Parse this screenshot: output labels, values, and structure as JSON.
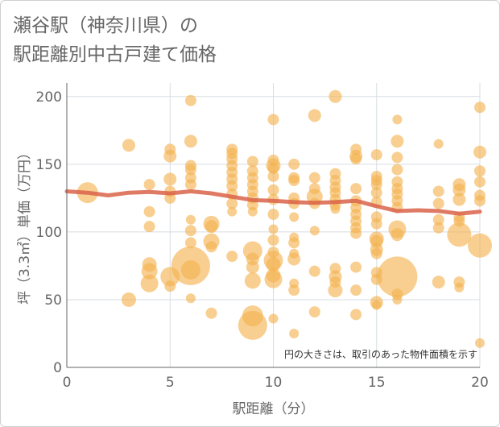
{
  "title": {
    "line1": "瀬谷駅（神奈川県）の",
    "line2": "駅距離別中古戸建て価格"
  },
  "chart_data": {
    "type": "scatter",
    "xlabel": "駅距離（分）",
    "ylabel": "坪（3.3㎡）単価（万円）",
    "xlim": [
      0,
      20
    ],
    "ylim": [
      0,
      210
    ],
    "xticks": [
      0,
      5,
      10,
      15,
      20
    ],
    "yticks": [
      0,
      50,
      100,
      150,
      200
    ],
    "grid": true,
    "annotation": "円の大きさは、取引のあった物件面積を示す",
    "colors": {
      "bubble": "#f3b24e",
      "trend": "#d9634a",
      "grid": "#d7dde2",
      "axis": "#666666"
    },
    "points": [
      {
        "x": 1,
        "y": 129,
        "s": 13
      },
      {
        "x": 3,
        "y": 164,
        "s": 8
      },
      {
        "x": 3,
        "y": 50,
        "s": 9
      },
      {
        "x": 4,
        "y": 135,
        "s": 7
      },
      {
        "x": 4,
        "y": 115,
        "s": 7
      },
      {
        "x": 4,
        "y": 104,
        "s": 7
      },
      {
        "x": 4,
        "y": 76,
        "s": 9
      },
      {
        "x": 4,
        "y": 71,
        "s": 10
      },
      {
        "x": 4,
        "y": 62,
        "s": 11
      },
      {
        "x": 5,
        "y": 161,
        "s": 7
      },
      {
        "x": 5,
        "y": 156,
        "s": 8
      },
      {
        "x": 5,
        "y": 139,
        "s": 8
      },
      {
        "x": 5,
        "y": 130,
        "s": 7
      },
      {
        "x": 5,
        "y": 125,
        "s": 7
      },
      {
        "x": 5,
        "y": 67,
        "s": 12
      },
      {
        "x": 5,
        "y": 60,
        "s": 7
      },
      {
        "x": 6,
        "y": 197,
        "s": 7
      },
      {
        "x": 6,
        "y": 167,
        "s": 8
      },
      {
        "x": 6,
        "y": 149,
        "s": 7
      },
      {
        "x": 6,
        "y": 146,
        "s": 7
      },
      {
        "x": 6,
        "y": 140,
        "s": 7
      },
      {
        "x": 6,
        "y": 135,
        "s": 7
      },
      {
        "x": 6,
        "y": 109,
        "s": 6
      },
      {
        "x": 6,
        "y": 101,
        "s": 7
      },
      {
        "x": 6,
        "y": 92,
        "s": 7
      },
      {
        "x": 6,
        "y": 75,
        "s": 24
      },
      {
        "x": 6,
        "y": 72,
        "s": 12
      },
      {
        "x": 6,
        "y": 51,
        "s": 6
      },
      {
        "x": 7,
        "y": 106,
        "s": 10
      },
      {
        "x": 7,
        "y": 104,
        "s": 8
      },
      {
        "x": 7,
        "y": 93,
        "s": 10
      },
      {
        "x": 7,
        "y": 89,
        "s": 7
      },
      {
        "x": 7,
        "y": 40,
        "s": 7
      },
      {
        "x": 8,
        "y": 161,
        "s": 7
      },
      {
        "x": 8,
        "y": 158,
        "s": 7
      },
      {
        "x": 8,
        "y": 154,
        "s": 7
      },
      {
        "x": 8,
        "y": 149,
        "s": 7
      },
      {
        "x": 8,
        "y": 144,
        "s": 7
      },
      {
        "x": 8,
        "y": 139,
        "s": 7
      },
      {
        "x": 8,
        "y": 134,
        "s": 7
      },
      {
        "x": 8,
        "y": 128,
        "s": 7
      },
      {
        "x": 8,
        "y": 121,
        "s": 7
      },
      {
        "x": 8,
        "y": 115,
        "s": 6
      },
      {
        "x": 8,
        "y": 82,
        "s": 7
      },
      {
        "x": 9,
        "y": 152,
        "s": 7
      },
      {
        "x": 9,
        "y": 145,
        "s": 7
      },
      {
        "x": 9,
        "y": 140,
        "s": 7
      },
      {
        "x": 9,
        "y": 135,
        "s": 7
      },
      {
        "x": 9,
        "y": 130,
        "s": 7
      },
      {
        "x": 9,
        "y": 125,
        "s": 7
      },
      {
        "x": 9,
        "y": 120,
        "s": 7
      },
      {
        "x": 9,
        "y": 115,
        "s": 6
      },
      {
        "x": 9,
        "y": 86,
        "s": 12
      },
      {
        "x": 9,
        "y": 80,
        "s": 8
      },
      {
        "x": 9,
        "y": 74,
        "s": 8
      },
      {
        "x": 9,
        "y": 64,
        "s": 10
      },
      {
        "x": 9,
        "y": 38,
        "s": 13
      },
      {
        "x": 9,
        "y": 31,
        "s": 18
      },
      {
        "x": 10,
        "y": 183,
        "s": 7
      },
      {
        "x": 10,
        "y": 153,
        "s": 7
      },
      {
        "x": 10,
        "y": 149,
        "s": 9
      },
      {
        "x": 10,
        "y": 147,
        "s": 7
      },
      {
        "x": 10,
        "y": 141,
        "s": 7
      },
      {
        "x": 10,
        "y": 131,
        "s": 7
      },
      {
        "x": 10,
        "y": 124,
        "s": 7
      },
      {
        "x": 10,
        "y": 113,
        "s": 7
      },
      {
        "x": 10,
        "y": 102,
        "s": 6
      },
      {
        "x": 10,
        "y": 94,
        "s": 7
      },
      {
        "x": 10,
        "y": 85,
        "s": 7
      },
      {
        "x": 10,
        "y": 79,
        "s": 12
      },
      {
        "x": 10,
        "y": 76,
        "s": 9
      },
      {
        "x": 10,
        "y": 68,
        "s": 9
      },
      {
        "x": 10,
        "y": 65,
        "s": 11
      },
      {
        "x": 10,
        "y": 36,
        "s": 6
      },
      {
        "x": 11,
        "y": 150,
        "s": 7
      },
      {
        "x": 11,
        "y": 140,
        "s": 7
      },
      {
        "x": 11,
        "y": 138,
        "s": 7
      },
      {
        "x": 11,
        "y": 125,
        "s": 7
      },
      {
        "x": 11,
        "y": 121,
        "s": 7
      },
      {
        "x": 11,
        "y": 111,
        "s": 6
      },
      {
        "x": 11,
        "y": 96,
        "s": 6
      },
      {
        "x": 11,
        "y": 92,
        "s": 7
      },
      {
        "x": 11,
        "y": 84,
        "s": 6
      },
      {
        "x": 11,
        "y": 80,
        "s": 8
      },
      {
        "x": 11,
        "y": 62,
        "s": 6
      },
      {
        "x": 11,
        "y": 57,
        "s": 7
      },
      {
        "x": 11,
        "y": 25,
        "s": 6
      },
      {
        "x": 12,
        "y": 186,
        "s": 8
      },
      {
        "x": 12,
        "y": 140,
        "s": 7
      },
      {
        "x": 12,
        "y": 132,
        "s": 7
      },
      {
        "x": 12,
        "y": 126,
        "s": 10
      },
      {
        "x": 12,
        "y": 121,
        "s": 7
      },
      {
        "x": 12,
        "y": 101,
        "s": 6
      },
      {
        "x": 12,
        "y": 71,
        "s": 7
      },
      {
        "x": 12,
        "y": 41,
        "s": 7
      },
      {
        "x": 13,
        "y": 200,
        "s": 8
      },
      {
        "x": 13,
        "y": 143,
        "s": 7
      },
      {
        "x": 13,
        "y": 138,
        "s": 7
      },
      {
        "x": 13,
        "y": 133,
        "s": 7
      },
      {
        "x": 13,
        "y": 129,
        "s": 7
      },
      {
        "x": 13,
        "y": 124,
        "s": 7
      },
      {
        "x": 13,
        "y": 120,
        "s": 7
      },
      {
        "x": 13,
        "y": 117,
        "s": 6
      },
      {
        "x": 13,
        "y": 73,
        "s": 7
      },
      {
        "x": 13,
        "y": 67,
        "s": 8
      },
      {
        "x": 13,
        "y": 63,
        "s": 7
      },
      {
        "x": 13,
        "y": 57,
        "s": 9
      },
      {
        "x": 14,
        "y": 161,
        "s": 7
      },
      {
        "x": 14,
        "y": 156,
        "s": 8
      },
      {
        "x": 14,
        "y": 154,
        "s": 7
      },
      {
        "x": 14,
        "y": 132,
        "s": 7
      },
      {
        "x": 14,
        "y": 123,
        "s": 7
      },
      {
        "x": 14,
        "y": 118,
        "s": 7
      },
      {
        "x": 14,
        "y": 113,
        "s": 7
      },
      {
        "x": 14,
        "y": 108,
        "s": 7
      },
      {
        "x": 14,
        "y": 103,
        "s": 7
      },
      {
        "x": 14,
        "y": 99,
        "s": 7
      },
      {
        "x": 14,
        "y": 74,
        "s": 7
      },
      {
        "x": 14,
        "y": 57,
        "s": 7
      },
      {
        "x": 14,
        "y": 39,
        "s": 7
      },
      {
        "x": 15,
        "y": 157,
        "s": 7
      },
      {
        "x": 15,
        "y": 141,
        "s": 7
      },
      {
        "x": 15,
        "y": 138,
        "s": 7
      },
      {
        "x": 15,
        "y": 135,
        "s": 7
      },
      {
        "x": 15,
        "y": 129,
        "s": 7
      },
      {
        "x": 15,
        "y": 122,
        "s": 7
      },
      {
        "x": 15,
        "y": 111,
        "s": 7
      },
      {
        "x": 15,
        "y": 106,
        "s": 7
      },
      {
        "x": 15,
        "y": 95,
        "s": 9
      },
      {
        "x": 15,
        "y": 93,
        "s": 8
      },
      {
        "x": 15,
        "y": 87,
        "s": 8
      },
      {
        "x": 15,
        "y": 84,
        "s": 7
      },
      {
        "x": 15,
        "y": 70,
        "s": 7
      },
      {
        "x": 15,
        "y": 65,
        "s": 7
      },
      {
        "x": 15,
        "y": 48,
        "s": 8
      },
      {
        "x": 15,
        "y": 46,
        "s": 6
      },
      {
        "x": 16,
        "y": 183,
        "s": 6
      },
      {
        "x": 16,
        "y": 167,
        "s": 8
      },
      {
        "x": 16,
        "y": 155,
        "s": 7
      },
      {
        "x": 16,
        "y": 146,
        "s": 7
      },
      {
        "x": 16,
        "y": 137,
        "s": 7
      },
      {
        "x": 16,
        "y": 132,
        "s": 7
      },
      {
        "x": 16,
        "y": 128,
        "s": 7
      },
      {
        "x": 16,
        "y": 123,
        "s": 7
      },
      {
        "x": 16,
        "y": 118,
        "s": 7
      },
      {
        "x": 16,
        "y": 102,
        "s": 11
      },
      {
        "x": 16,
        "y": 98,
        "s": 8
      },
      {
        "x": 16,
        "y": 67,
        "s": 25
      },
      {
        "x": 16,
        "y": 54,
        "s": 7
      },
      {
        "x": 16,
        "y": 50,
        "s": 6
      },
      {
        "x": 18,
        "y": 165,
        "s": 6
      },
      {
        "x": 18,
        "y": 130,
        "s": 7
      },
      {
        "x": 18,
        "y": 121,
        "s": 7
      },
      {
        "x": 18,
        "y": 109,
        "s": 7
      },
      {
        "x": 18,
        "y": 103,
        "s": 7
      },
      {
        "x": 18,
        "y": 63,
        "s": 8
      },
      {
        "x": 19,
        "y": 135,
        "s": 8
      },
      {
        "x": 19,
        "y": 131,
        "s": 8
      },
      {
        "x": 19,
        "y": 124,
        "s": 8
      },
      {
        "x": 19,
        "y": 111,
        "s": 7
      },
      {
        "x": 19,
        "y": 108,
        "s": 7
      },
      {
        "x": 19,
        "y": 98,
        "s": 15
      },
      {
        "x": 19,
        "y": 63,
        "s": 7
      },
      {
        "x": 19,
        "y": 59,
        "s": 6
      },
      {
        "x": 20,
        "y": 192,
        "s": 7
      },
      {
        "x": 20,
        "y": 159,
        "s": 8
      },
      {
        "x": 20,
        "y": 145,
        "s": 7
      },
      {
        "x": 20,
        "y": 137,
        "s": 7
      },
      {
        "x": 20,
        "y": 127,
        "s": 7
      },
      {
        "x": 20,
        "y": 123,
        "s": 7
      },
      {
        "x": 20,
        "y": 90,
        "s": 15
      },
      {
        "x": 20,
        "y": 18,
        "s": 6
      }
    ],
    "trend": [
      {
        "x": 0,
        "y": 130
      },
      {
        "x": 1,
        "y": 129
      },
      {
        "x": 2,
        "y": 127
      },
      {
        "x": 3,
        "y": 129
      },
      {
        "x": 4,
        "y": 129.5
      },
      {
        "x": 5,
        "y": 128.5
      },
      {
        "x": 6,
        "y": 130
      },
      {
        "x": 7,
        "y": 128.5
      },
      {
        "x": 8,
        "y": 126
      },
      {
        "x": 9,
        "y": 123.5
      },
      {
        "x": 10,
        "y": 123
      },
      {
        "x": 11,
        "y": 122
      },
      {
        "x": 12,
        "y": 121.5
      },
      {
        "x": 13,
        "y": 122
      },
      {
        "x": 14,
        "y": 123
      },
      {
        "x": 15,
        "y": 119
      },
      {
        "x": 16,
        "y": 115.5
      },
      {
        "x": 17,
        "y": 116
      },
      {
        "x": 18,
        "y": 115.5
      },
      {
        "x": 19,
        "y": 113.5
      },
      {
        "x": 20,
        "y": 115
      }
    ]
  }
}
